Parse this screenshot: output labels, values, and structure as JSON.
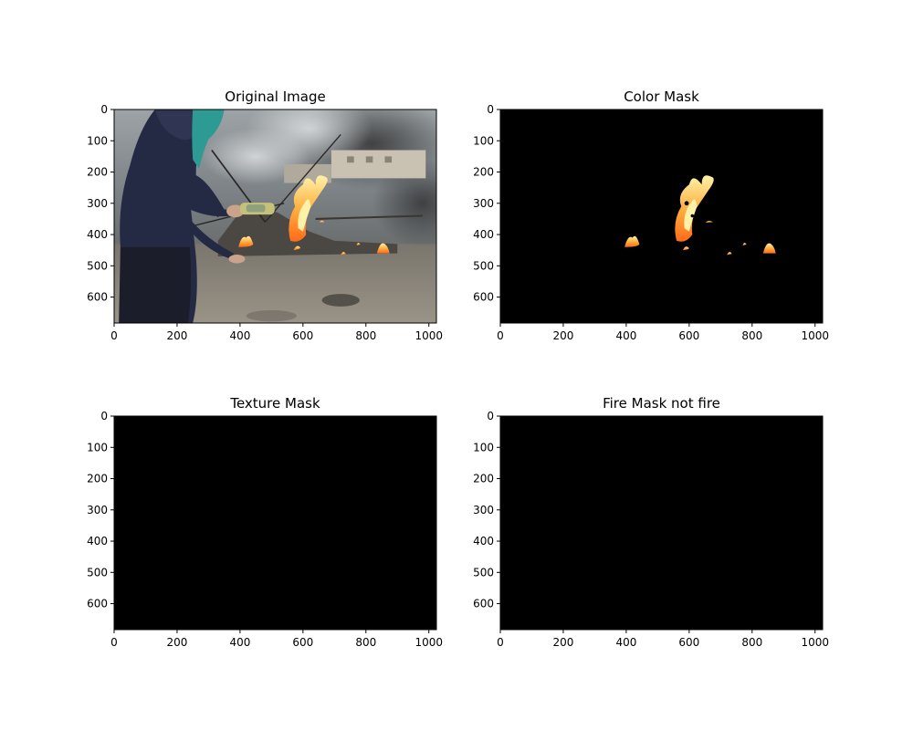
{
  "figure": {
    "panels": [
      {
        "title": "Original Image",
        "kind": "photo",
        "xticks": [
          "0",
          "200",
          "400",
          "600",
          "800",
          "1000"
        ],
        "yticks": [
          "0",
          "100",
          "200",
          "300",
          "400",
          "500",
          "600"
        ],
        "image": {
          "width": 1024,
          "height": 683
        }
      },
      {
        "title": "Color Mask",
        "kind": "mask-fire",
        "xticks": [
          "0",
          "200",
          "400",
          "600",
          "800",
          "1000"
        ],
        "yticks": [
          "0",
          "100",
          "200",
          "300",
          "400",
          "500",
          "600"
        ],
        "image": {
          "width": 1024,
          "height": 683
        }
      },
      {
        "title": "Texture Mask",
        "kind": "blank",
        "xticks": [
          "0",
          "200",
          "400",
          "600",
          "800",
          "1000"
        ],
        "yticks": [
          "0",
          "100",
          "200",
          "300",
          "400",
          "500",
          "600"
        ],
        "image": {
          "width": 1024,
          "height": 683
        }
      },
      {
        "title": "Fire Mask not fire",
        "kind": "blank",
        "xticks": [
          "0",
          "200",
          "400",
          "600",
          "800",
          "1000"
        ],
        "yticks": [
          "0",
          "100",
          "200",
          "300",
          "400",
          "500",
          "600"
        ],
        "image": {
          "width": 1024,
          "height": 683
        }
      }
    ],
    "colors": {
      "axis": "#000000",
      "mask_background": "#000000",
      "fire_core": "#fff2a8",
      "fire_mid": "#ffb040",
      "fire_outer": "#ff6a1a"
    }
  }
}
